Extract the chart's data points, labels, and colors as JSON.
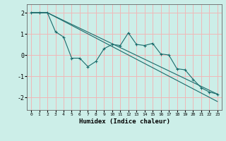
{
  "xlabel": "Humidex (Indice chaleur)",
  "bg_color": "#cceee8",
  "grid_color": "#f0b8b8",
  "line_color": "#1a6b6b",
  "xlim": [
    -0.5,
    23.5
  ],
  "ylim": [
    -2.6,
    2.4
  ],
  "yticks": [
    -2,
    -1,
    0,
    1,
    2
  ],
  "xticks": [
    0,
    1,
    2,
    3,
    4,
    5,
    6,
    7,
    8,
    9,
    10,
    11,
    12,
    13,
    14,
    15,
    16,
    17,
    18,
    19,
    20,
    21,
    22,
    23
  ],
  "line1_x": [
    0,
    1,
    2,
    3,
    4,
    5,
    6,
    7,
    8,
    9,
    10,
    11,
    12,
    13,
    14,
    15,
    16,
    17,
    18,
    19,
    20,
    21,
    22,
    23
  ],
  "line1_y": [
    2.0,
    2.0,
    2.0,
    1.1,
    0.85,
    -0.15,
    -0.15,
    -0.55,
    -0.3,
    0.3,
    0.5,
    0.45,
    1.05,
    0.5,
    0.45,
    0.55,
    0.05,
    0.0,
    -0.65,
    -0.7,
    -1.15,
    -1.55,
    -1.75,
    -1.85
  ],
  "line2_x": [
    0,
    2,
    23
  ],
  "line2_y": [
    2.0,
    2.0,
    -2.2
  ],
  "line3_x": [
    0,
    2,
    23
  ],
  "line3_y": [
    2.0,
    2.0,
    -1.85
  ]
}
